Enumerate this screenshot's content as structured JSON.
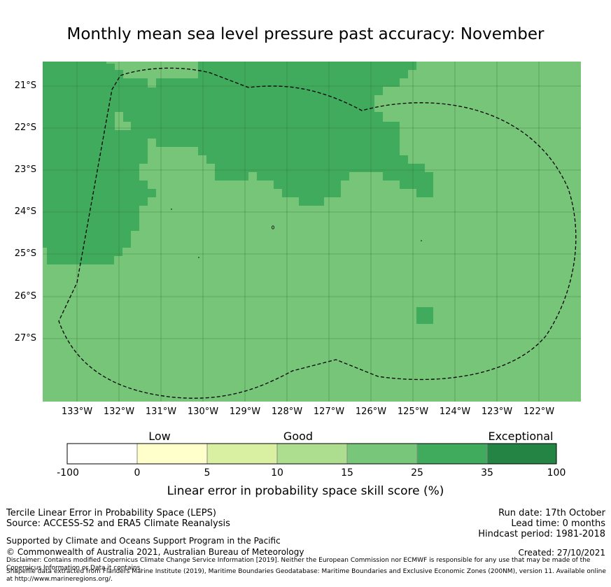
{
  "title": "Monthly mean sea level pressure past accuracy: November",
  "map": {
    "lat_labels": [
      "21°S",
      "22°S",
      "23°S",
      "24°S",
      "25°S",
      "26°S",
      "27°S"
    ],
    "lon_labels": [
      "133°W",
      "132°W",
      "131°W",
      "130°W",
      "129°W",
      "128°W",
      "127°W",
      "126°W",
      "125°W",
      "124°W",
      "123°W",
      "122°W"
    ],
    "lon_range": [
      -133.8,
      -121.0
    ],
    "lat_range": [
      -20.4,
      -28.5
    ],
    "colors": {
      "good_15_25": "#77c579",
      "good_25_35": "#41ab5d",
      "boundary_line": "#000000"
    }
  },
  "colorbar": {
    "categories": [
      "Low",
      "Good",
      "Exceptional"
    ],
    "ticks": [
      "-100",
      "0",
      "5",
      "10",
      "15",
      "25",
      "35",
      "100"
    ],
    "colors": [
      "#ffffff",
      "#ffffcc",
      "#d9f0a3",
      "#addd8e",
      "#78c679",
      "#41ab5d",
      "#238443"
    ],
    "label": "Linear error in probability space skill score (%)"
  },
  "footer": {
    "line1": "Tercile Linear Error in Probability Space (LEPS)",
    "line2": "Source: ACCESS-S2 and ERA5 Climate Reanalysis",
    "support": "Supported by Climate and Oceans Support Program in the Pacific",
    "copyright": "© Commonwealth of Australia 2021, Australian Bureau of Meteorology",
    "run_date": "Run date: 17th October",
    "lead_time": "Lead time: 0 months",
    "hindcast": "Hindcast period: 1981-2018",
    "created": "Created: 27/10/2021",
    "disclaimer": "Disclaimer: Contains modified Copernicus Climate Change Service Information [2019]. Neither the European Commission nor ECMWF is responsible for any use that may be made of the Copernicus Information or Data it contains.",
    "shapefile": "Shapefile data extracted from Flanders Marine Institute (2019), Maritime Boundaries Geodatabase: Maritime Boundaries and Exclusive Economic Zones (200NM), version 11. Available online at http://www.marineregions.org/."
  }
}
